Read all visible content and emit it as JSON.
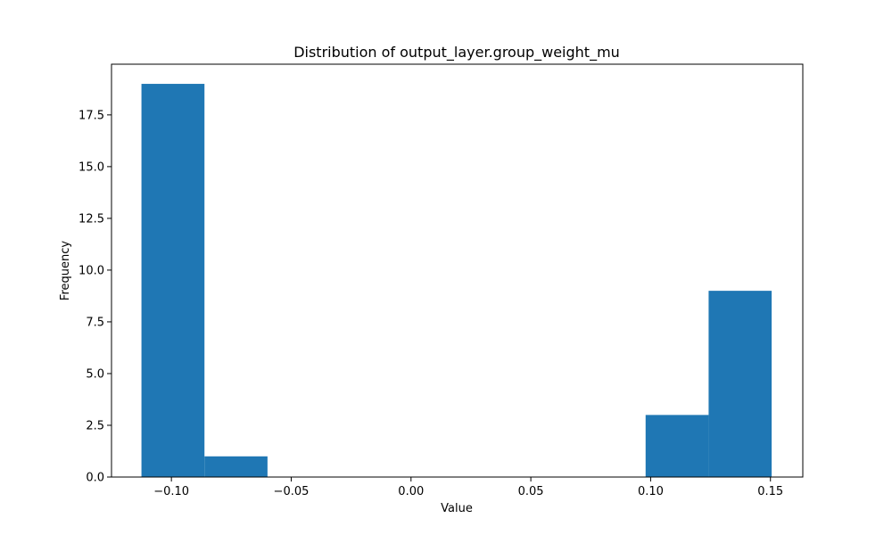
{
  "chart_data": {
    "type": "bar",
    "title": "Distribution of output_layer.group_weight_mu",
    "xlabel": "Value",
    "ylabel": "Frequency",
    "bar_color": "#1f77b4",
    "xlim": [
      -0.125,
      0.1635
    ],
    "ylim": [
      0,
      19.95
    ],
    "bins": [
      {
        "x0": -0.1125,
        "x1": -0.0862,
        "value": 19
      },
      {
        "x0": -0.0862,
        "x1": -0.0599,
        "value": 1
      },
      {
        "x0": -0.0599,
        "x1": -0.0336,
        "value": 0
      },
      {
        "x0": -0.0336,
        "x1": -0.0073,
        "value": 0
      },
      {
        "x0": -0.0073,
        "x1": 0.019,
        "value": 0
      },
      {
        "x0": 0.019,
        "x1": 0.0453,
        "value": 0
      },
      {
        "x0": 0.0453,
        "x1": 0.0716,
        "value": 0
      },
      {
        "x0": 0.0716,
        "x1": 0.0979,
        "value": 0
      },
      {
        "x0": 0.0979,
        "x1": 0.1242,
        "value": 3
      },
      {
        "x0": 0.1242,
        "x1": 0.1505,
        "value": 9
      }
    ],
    "xticks": [
      -0.1,
      -0.05,
      0.0,
      0.05,
      0.1,
      0.15
    ],
    "xtick_labels": [
      "−0.10",
      "−0.05",
      "0.00",
      "0.05",
      "0.10",
      "0.15"
    ],
    "yticks": [
      0,
      2.5,
      5,
      7.5,
      10,
      12.5,
      15,
      17.5
    ],
    "ytick_labels": [
      "0.0",
      "2.5",
      "5.0",
      "7.5",
      "10.0",
      "12.5",
      "15.0",
      "17.5"
    ],
    "grid": false
  }
}
